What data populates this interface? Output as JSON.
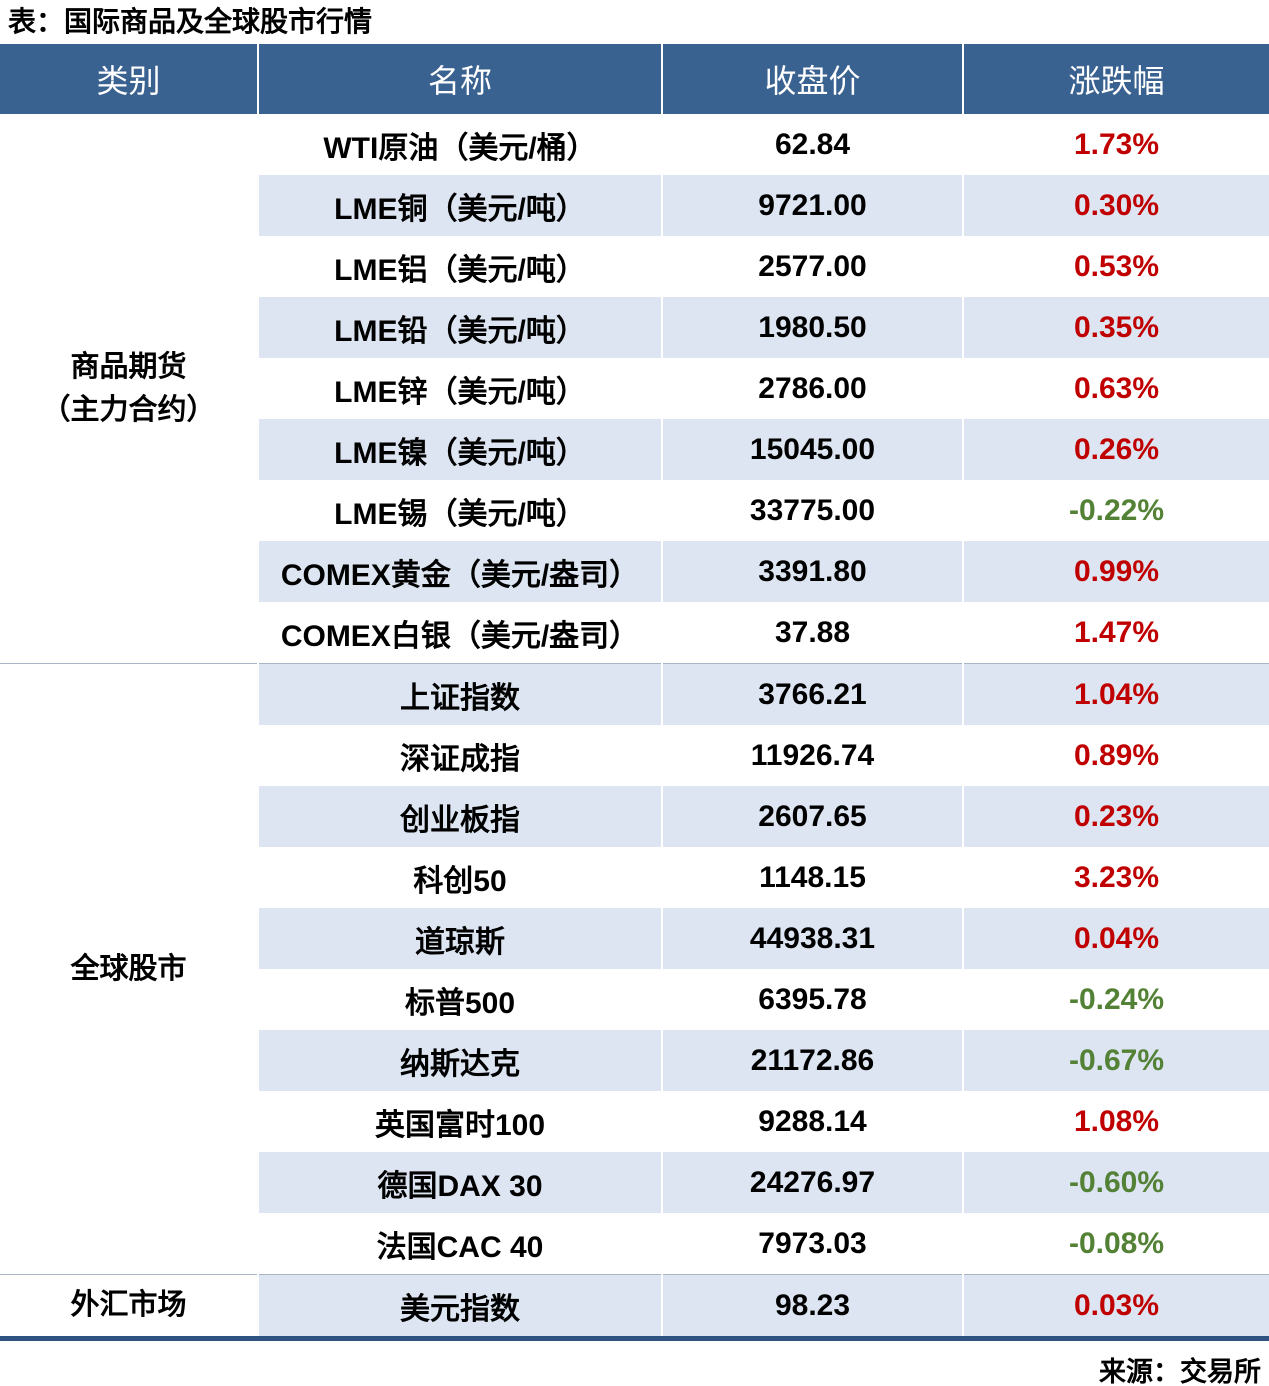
{
  "chart_data": {
    "type": "table",
    "title": "表：国际商品及全球股市行情",
    "columns": [
      "类别",
      "名称",
      "收盘价",
      "涨跌幅"
    ],
    "sections": [
      {
        "category_lines": [
          "商品期货",
          "（主力合约）"
        ],
        "rows": [
          {
            "name": "WTI原油（美元/桶）",
            "close": "62.84",
            "change": "1.73%",
            "direction": "up"
          },
          {
            "name": "LME铜（美元/吨）",
            "close": "9721.00",
            "change": "0.30%",
            "direction": "up"
          },
          {
            "name": "LME铝（美元/吨）",
            "close": "2577.00",
            "change": "0.53%",
            "direction": "up"
          },
          {
            "name": "LME铅（美元/吨）",
            "close": "1980.50",
            "change": "0.35%",
            "direction": "up"
          },
          {
            "name": "LME锌（美元/吨）",
            "close": "2786.00",
            "change": "0.63%",
            "direction": "up"
          },
          {
            "name": "LME镍（美元/吨）",
            "close": "15045.00",
            "change": "0.26%",
            "direction": "up"
          },
          {
            "name": "LME锡（美元/吨）",
            "close": "33775.00",
            "change": "-0.22%",
            "direction": "down"
          },
          {
            "name": "COMEX黄金（美元/盎司）",
            "close": "3391.80",
            "change": "0.99%",
            "direction": "up"
          },
          {
            "name": "COMEX白银（美元/盎司）",
            "close": "37.88",
            "change": "1.47%",
            "direction": "up"
          }
        ]
      },
      {
        "category_lines": [
          "全球股市"
        ],
        "rows": [
          {
            "name": "上证指数",
            "close": "3766.21",
            "change": "1.04%",
            "direction": "up"
          },
          {
            "name": "深证成指",
            "close": "11926.74",
            "change": "0.89%",
            "direction": "up"
          },
          {
            "name": "创业板指",
            "close": "2607.65",
            "change": "0.23%",
            "direction": "up"
          },
          {
            "name": "科创50",
            "close": "1148.15",
            "change": "3.23%",
            "direction": "up"
          },
          {
            "name": "道琼斯",
            "close": "44938.31",
            "change": "0.04%",
            "direction": "up"
          },
          {
            "name": "标普500",
            "close": "6395.78",
            "change": "-0.24%",
            "direction": "down"
          },
          {
            "name": "纳斯达克",
            "close": "21172.86",
            "change": "-0.67%",
            "direction": "down"
          },
          {
            "name": "英国富时100",
            "close": "9288.14",
            "change": "1.08%",
            "direction": "up"
          },
          {
            "name": "德国DAX 30",
            "close": "24276.97",
            "change": "-0.60%",
            "direction": "down"
          },
          {
            "name": "法国CAC 40",
            "close": "7973.03",
            "change": "-0.08%",
            "direction": "down"
          }
        ]
      },
      {
        "category_lines": [
          "外汇市场"
        ],
        "rows": [
          {
            "name": "美元指数",
            "close": "98.23",
            "change": "0.03%",
            "direction": "up"
          }
        ]
      }
    ],
    "source": "来源：交易所"
  },
  "colors": {
    "header_bg": "#3A6291",
    "stripe_bg": "#DCE5F1",
    "up_red": "#C00000",
    "down_green": "#538135",
    "bottom_rule": "#2F5380"
  }
}
